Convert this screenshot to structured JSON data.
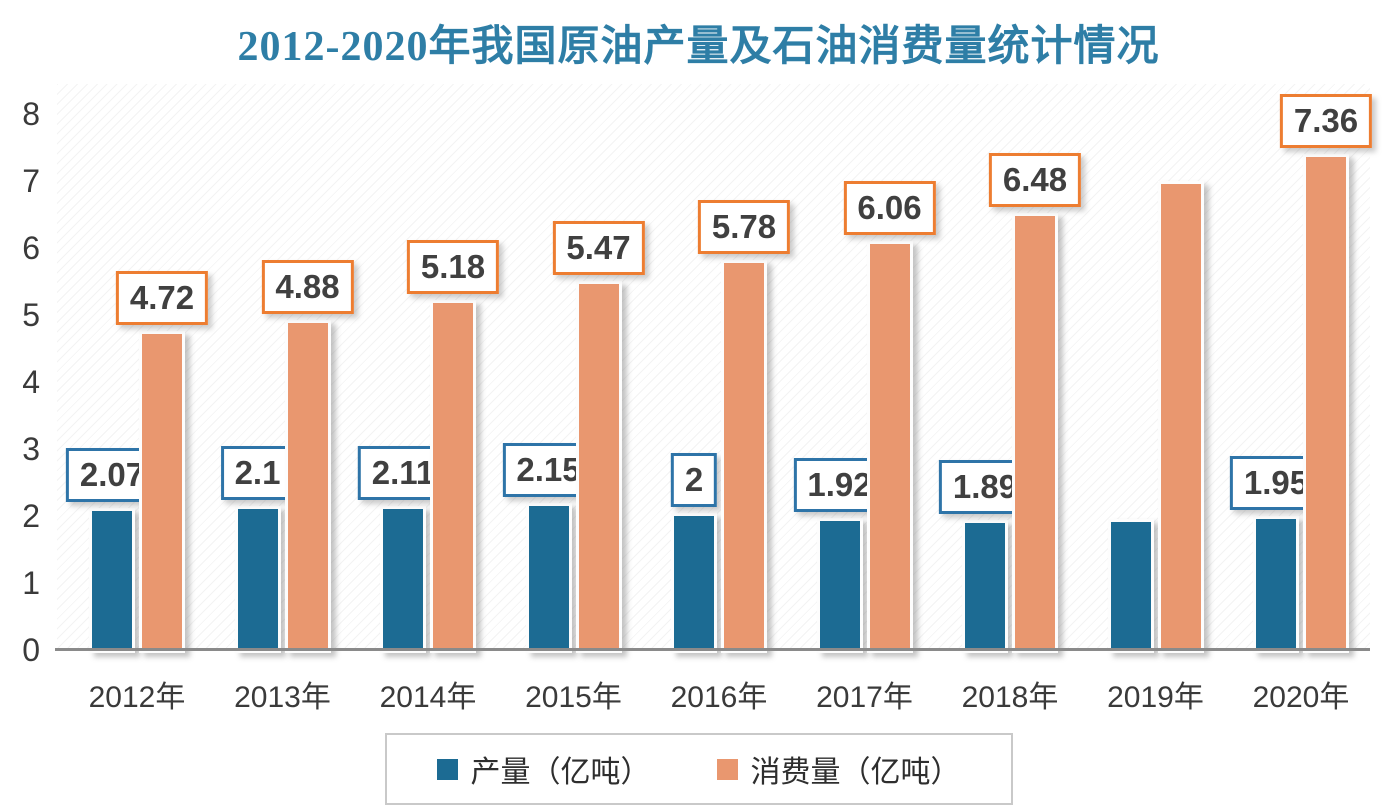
{
  "chart_data": {
    "type": "bar",
    "title": "2012-2020年我国原油产量及石油消费量统计情况",
    "title_color": "#2E7EA6",
    "categories": [
      "2012年",
      "2013年",
      "2014年",
      "2015年",
      "2016年",
      "2017年",
      "2018年",
      "2019年",
      "2020年"
    ],
    "series": [
      {
        "key": "production",
        "name": "产量（亿吨）",
        "color": "#1C6B93",
        "label_border_color": "#2E74A8",
        "values": [
          2.07,
          2.1,
          2.11,
          2.15,
          2.0,
          1.92,
          1.89,
          1.91,
          1.95
        ],
        "data_labels": [
          "2.07",
          "2.1",
          "2.11",
          "2.15",
          "2",
          "1.92",
          "1.89",
          "",
          "1.95"
        ]
      },
      {
        "key": "consumption",
        "name": "消费量（亿吨）",
        "color": "#E9976F",
        "label_border_color": "#ED7D31",
        "values": [
          4.72,
          4.88,
          5.18,
          5.47,
          5.78,
          6.06,
          6.48,
          6.95,
          7.36
        ],
        "data_labels": [
          "4.72",
          "4.88",
          "5.18",
          "5.47",
          "5.78",
          "6.06",
          "6.48",
          "",
          "7.36"
        ]
      }
    ],
    "ylim": [
      0,
      8
    ],
    "yticks": [
      "0",
      "1",
      "2",
      "3",
      "4",
      "5",
      "6",
      "7",
      "8"
    ],
    "grid": false,
    "legend_position": "bottom",
    "data_label_text_color": "#404040",
    "axis_line_color": "#8A8A8A",
    "axis_text_color": "#3A3A3A"
  }
}
